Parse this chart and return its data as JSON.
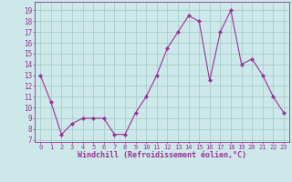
{
  "x": [
    0,
    1,
    2,
    3,
    4,
    5,
    6,
    7,
    8,
    9,
    10,
    11,
    12,
    13,
    14,
    15,
    16,
    17,
    18,
    19,
    20,
    21,
    22,
    23
  ],
  "y": [
    13,
    10.5,
    7.5,
    8.5,
    9,
    9,
    9,
    7.5,
    7.5,
    9.5,
    11,
    13,
    15.5,
    17,
    18.5,
    18,
    12.5,
    17,
    19,
    14,
    14.5,
    13,
    11,
    9.5
  ],
  "line_color": "#993399",
  "marker": "D",
  "marker_size": 2,
  "bg_color": "#cce8e8",
  "grid_color": "#aacccc",
  "xlabel": "Windchill (Refroidissement éolien,°C)",
  "xlabel_color": "#993399",
  "ylabel_ticks": [
    7,
    8,
    9,
    10,
    11,
    12,
    13,
    14,
    15,
    16,
    17,
    18,
    19
  ],
  "xtick_labels": [
    "0",
    "1",
    "2",
    "3",
    "4",
    "5",
    "6",
    "7",
    "8",
    "9",
    "10",
    "11",
    "12",
    "13",
    "14",
    "15",
    "16",
    "17",
    "18",
    "19",
    "20",
    "21",
    "22",
    "23"
  ],
  "ylim": [
    6.8,
    19.8
  ],
  "xlim": [
    -0.5,
    23.5
  ],
  "tick_color": "#993399",
  "axis_color": "#993399",
  "font_family": "monospace",
  "xlabel_fontsize": 6.0,
  "ytick_fontsize": 5.5,
  "xtick_fontsize": 5.0
}
